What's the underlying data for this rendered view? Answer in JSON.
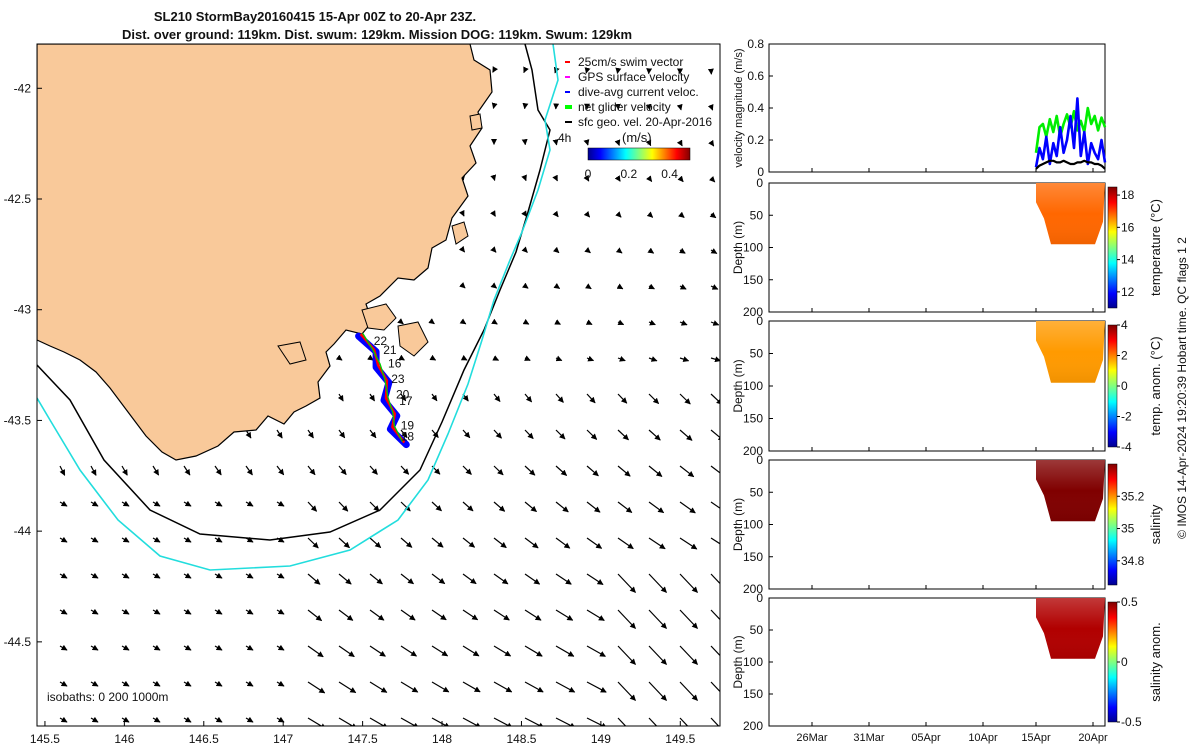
{
  "chart_data": [
    {
      "type": "map",
      "title": "SL210 StormBay20160415 15-Apr 00Z to 20-Apr 23Z.",
      "subtitle": "Dist. over ground: 119km. Dist. swum: 129km. Mission DOG: 119km. Swum: 129km",
      "x_ticks": [
        "145.5",
        "146",
        "146.5",
        "147",
        "147.5",
        "148",
        "148.5",
        "149",
        "149.5"
      ],
      "y_ticks": [
        "-42",
        "-42.5",
        "-43",
        "-43.5",
        "-44",
        "-44.5"
      ],
      "xlim": [
        145.45,
        149.75
      ],
      "ylim": [
        -44.88,
        -41.8
      ],
      "legend": [
        {
          "label": "25cm/s swim vector",
          "color": "#ff0000"
        },
        {
          "label": "GPS surface velocity",
          "color": "#ff00ff"
        },
        {
          "label": "dive-avg current veloc.",
          "color": "#0000ff"
        },
        {
          "label": "net glider velocity",
          "color": "#00ff00"
        },
        {
          "label": "sfc geo. vel. 20-Apr-2016",
          "color": "#000000"
        }
      ],
      "speed_colorbar": {
        "label": "(m/s)",
        "ticks": [
          "0",
          "0.2",
          "0.4"
        ],
        "range": [
          0,
          0.5
        ]
      },
      "scale_text": "4h",
      "isobath_note": "isobaths: 0   200  1000m",
      "day_labels": [
        {
          "text": "22",
          "lon": 147.57,
          "lat": -43.16
        },
        {
          "text": "21",
          "lon": 147.63,
          "lat": -43.2
        },
        {
          "text": "16",
          "lon": 147.66,
          "lat": -43.26
        },
        {
          "text": "23",
          "lon": 147.68,
          "lat": -43.33
        },
        {
          "text": "20",
          "lon": 147.71,
          "lat": -43.4
        },
        {
          "text": "17",
          "lon": 147.73,
          "lat": -43.43
        },
        {
          "text": "19",
          "lon": 147.74,
          "lat": -43.54
        },
        {
          "text": "18",
          "lon": 147.74,
          "lat": -43.59
        }
      ],
      "glider_track": [
        [
          147.5,
          -43.11
        ],
        [
          147.56,
          -43.18
        ],
        [
          147.61,
          -43.25
        ],
        [
          147.64,
          -43.32
        ],
        [
          147.66,
          -43.4
        ],
        [
          147.69,
          -43.47
        ],
        [
          147.7,
          -43.53
        ],
        [
          147.75,
          -43.6
        ]
      ]
    },
    {
      "type": "line",
      "ylabel": "velocity magnitude (m/s)",
      "y_ticks": [
        "0",
        "0.2",
        "0.4",
        "0.6",
        "0.8"
      ],
      "ylim": [
        0,
        0.8
      ],
      "series": [
        {
          "color": "#00ee00",
          "values": [
            0.12,
            0.28,
            0.3,
            0.22,
            0.33,
            0.25,
            0.35,
            0.22,
            0.3,
            0.36,
            0.28,
            0.38,
            0.26,
            0.32,
            0.25,
            0.4,
            0.3,
            0.35,
            0.26,
            0.34,
            0.28
          ]
        },
        {
          "color": "#0000ff",
          "values": [
            0.03,
            0.15,
            0.08,
            0.22,
            0.05,
            0.18,
            0.1,
            0.28,
            0.12,
            0.2,
            0.35,
            0.15,
            0.46,
            0.1,
            0.25,
            0.05,
            0.18,
            0.12,
            0.08,
            0.2,
            0.06
          ]
        },
        {
          "color": "#000000",
          "values": [
            0.02,
            0.04,
            0.05,
            0.06,
            0.07,
            0.07,
            0.06,
            0.06,
            0.07,
            0.06,
            0.05,
            0.05,
            0.06,
            0.06,
            0.07,
            0.06,
            0.06,
            0.05,
            0.05,
            0.04,
            0.02
          ]
        }
      ]
    },
    {
      "type": "heatmap",
      "ylabel": "Depth (m)",
      "y_ticks": [
        "0",
        "50",
        "100",
        "150",
        "200"
      ],
      "colorbar_label": "temperature (°C)",
      "colorbar_ticks": [
        "12",
        "14",
        "16",
        "18"
      ],
      "colorbar_range": [
        11,
        18.5
      ],
      "main_value": 16.8
    },
    {
      "type": "heatmap",
      "ylabel": "Depth (m)",
      "y_ticks": [
        "0",
        "50",
        "100",
        "150",
        "200"
      ],
      "colorbar_label": "temp. anom. (°C)",
      "colorbar_ticks": [
        "-4",
        "-2",
        "0",
        "2",
        "4"
      ],
      "colorbar_range": [
        -4,
        4
      ],
      "main_value": 1.8
    },
    {
      "type": "heatmap",
      "ylabel": "Depth (m)",
      "y_ticks": [
        "0",
        "50",
        "100",
        "150",
        "200"
      ],
      "colorbar_label": "salinity",
      "colorbar_ticks": [
        "34.8",
        "35",
        "35.2"
      ],
      "colorbar_range": [
        34.65,
        35.4
      ],
      "main_value": 35.4
    },
    {
      "type": "heatmap",
      "ylabel": "Depth (m)",
      "y_ticks": [
        "0",
        "50",
        "100",
        "150",
        "200"
      ],
      "colorbar_label": "salinity anom.",
      "colorbar_ticks": [
        "-0.5",
        "0",
        "0.5"
      ],
      "colorbar_range": [
        -0.5,
        0.5
      ],
      "main_value": 0.45
    }
  ],
  "time_axis": {
    "ticks": [
      "26Mar",
      "31Mar",
      "05Apr",
      "10Apr",
      "15Apr",
      "20Apr"
    ]
  },
  "credit": "© IMOS 14-Apr-2024 19:20:39 Hobart time. QC flags 1  2"
}
